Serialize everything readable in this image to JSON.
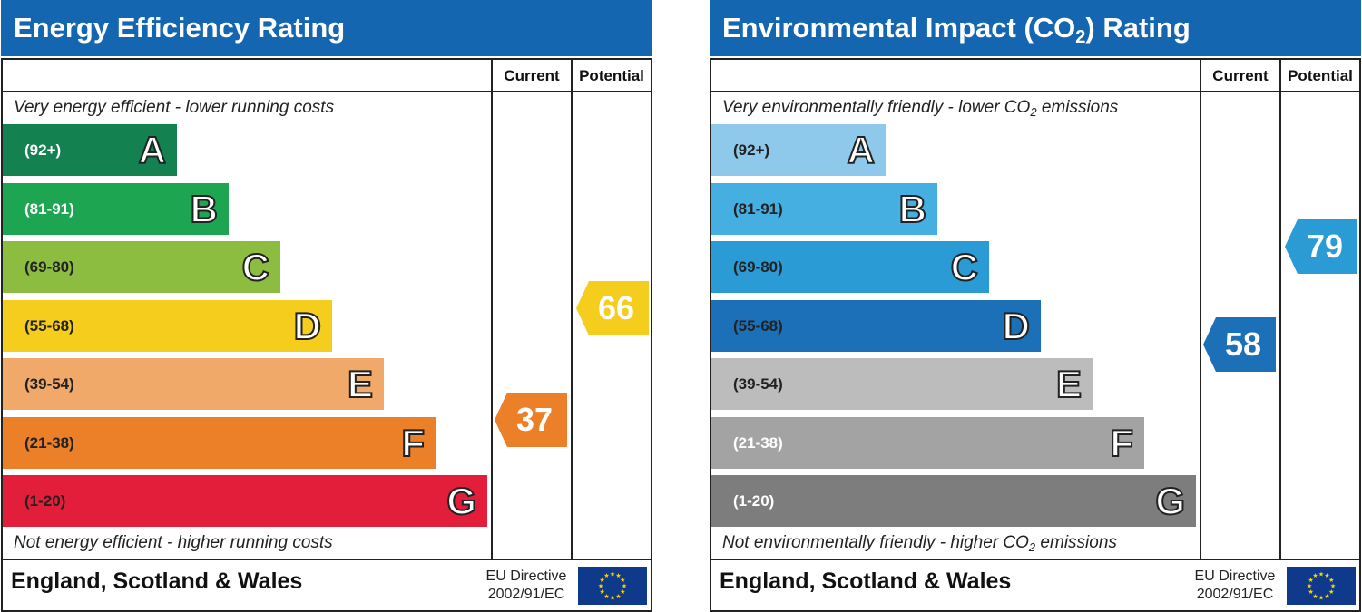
{
  "chart_data": [
    {
      "type": "bar",
      "title": "Energy Efficiency Rating",
      "columns": [
        "Current",
        "Potential"
      ],
      "top_note": "Very energy efficient - lower running costs",
      "bottom_note": "Not energy efficient - higher running costs",
      "bands": [
        {
          "letter": "A",
          "range": "(92+)",
          "min": 92,
          "max": 100,
          "color": "#138150",
          "text_color": "#ffffff"
        },
        {
          "letter": "B",
          "range": "(81-91)",
          "min": 81,
          "max": 91,
          "color": "#1da552",
          "text_color": "#ffffff"
        },
        {
          "letter": "C",
          "range": "(69-80)",
          "min": 69,
          "max": 80,
          "color": "#8dbd40",
          "text_color": "#222222"
        },
        {
          "letter": "D",
          "range": "(55-68)",
          "min": 55,
          "max": 68,
          "color": "#f5cd1c",
          "text_color": "#222222"
        },
        {
          "letter": "E",
          "range": "(39-54)",
          "min": 39,
          "max": 54,
          "color": "#f1a96a",
          "text_color": "#222222"
        },
        {
          "letter": "F",
          "range": "(21-38)",
          "min": 21,
          "max": 38,
          "color": "#ec8029",
          "text_color": "#222222"
        },
        {
          "letter": "G",
          "range": "(1-20)",
          "min": 1,
          "max": 20,
          "color": "#e21e3b",
          "text_color": "#222222"
        }
      ],
      "current": {
        "value": 37,
        "label": "37",
        "color": "#ec8029"
      },
      "potential": {
        "value": 66,
        "label": "66",
        "color": "#f5cd1c"
      }
    },
    {
      "type": "bar",
      "title": "Environmental Impact (CO",
      "title_sub": "2",
      "title_end": ") Rating",
      "columns": [
        "Current",
        "Potential"
      ],
      "top_note": "Very environmentally friendly - lower CO",
      "top_note_sub": "2",
      "top_note_end": " emissions",
      "bottom_note": "Not environmentally friendly - higher CO",
      "bottom_note_sub": "2",
      "bottom_note_end": " emissions",
      "bands": [
        {
          "letter": "A",
          "range": "(92+)",
          "min": 92,
          "max": 100,
          "color": "#8ec9ec",
          "text_color": "#222222"
        },
        {
          "letter": "B",
          "range": "(81-91)",
          "min": 81,
          "max": 91,
          "color": "#45afe2",
          "text_color": "#222222"
        },
        {
          "letter": "C",
          "range": "(69-80)",
          "min": 69,
          "max": 80,
          "color": "#2b9bd5",
          "text_color": "#222222"
        },
        {
          "letter": "D",
          "range": "(55-68)",
          "min": 55,
          "max": 68,
          "color": "#1b70b8",
          "text_color": "#222222"
        },
        {
          "letter": "E",
          "range": "(39-54)",
          "min": 39,
          "max": 54,
          "color": "#bcbcbc",
          "text_color": "#222222"
        },
        {
          "letter": "F",
          "range": "(21-38)",
          "min": 21,
          "max": 38,
          "color": "#a3a3a3",
          "text_color": "#ffffff"
        },
        {
          "letter": "G",
          "range": "(1-20)",
          "min": 1,
          "max": 20,
          "color": "#7d7d7d",
          "text_color": "#ffffff"
        }
      ],
      "current": {
        "value": 58,
        "label": "58",
        "color": "#1b70b8"
      },
      "potential": {
        "value": 79,
        "label": "79",
        "color": "#2b9bd5"
      }
    }
  ],
  "footer": {
    "region": "England, Scotland & Wales",
    "eu_line1": "EU Directive",
    "eu_line2": "2002/91/EC"
  },
  "colors": {
    "header": "#1466b0",
    "flag_blue": "#0f3a8c",
    "flag_stars": "#ffd400"
  }
}
